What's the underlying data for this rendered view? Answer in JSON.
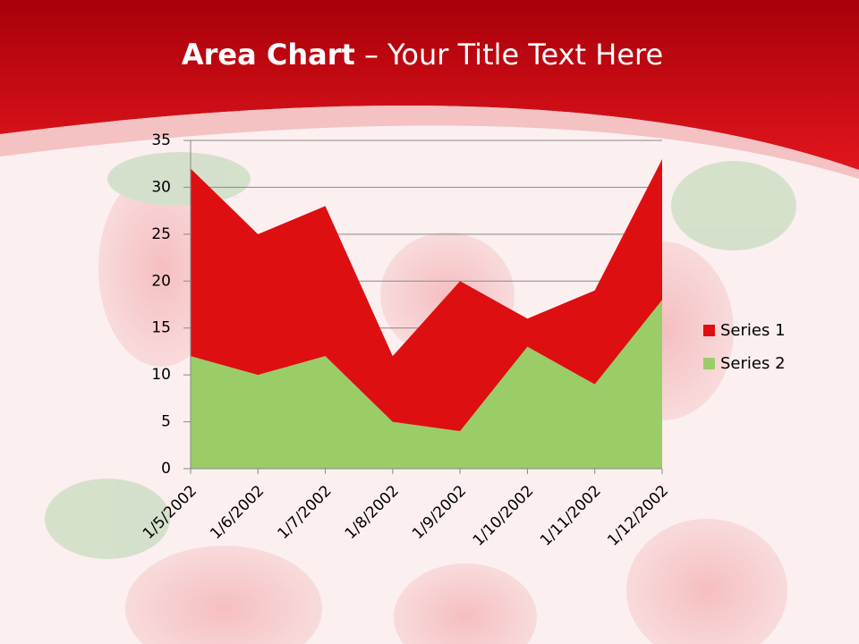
{
  "chart_data": {
    "type": "area",
    "title": [
      "Area Chart",
      "– Your Title Text Here"
    ],
    "categories": [
      "1/5/2002",
      "1/6/2002",
      "1/7/2002",
      "1/8/2002",
      "1/9/2002",
      "1/10/2002",
      "1/11/2002",
      "1/12/2002"
    ],
    "stacked": true,
    "series": [
      {
        "name": "Series 1",
        "color": "#dd0f10",
        "values": [
          20,
          15,
          16,
          7,
          16,
          3,
          10,
          15
        ]
      },
      {
        "name": "Series 2",
        "color": "#9acd68",
        "values": [
          12,
          10,
          12,
          5,
          4,
          13,
          9,
          18
        ]
      }
    ],
    "ylim": [
      0,
      35
    ],
    "yticks": [
      0,
      5,
      10,
      15,
      20,
      25,
      30,
      35
    ],
    "grid": true,
    "legend": "right"
  }
}
